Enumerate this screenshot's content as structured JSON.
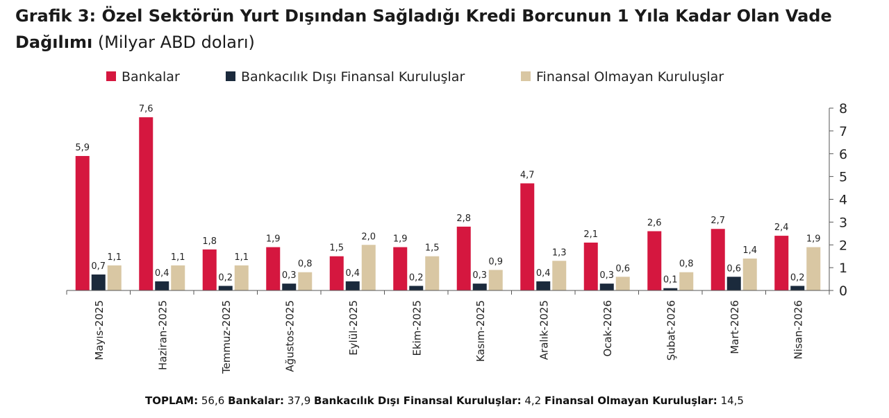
{
  "title": "Grafik 3: Özel Sektörün Yurt Dışından Sağladığı Kredi Borcunun 1 Yıla Kadar Olan Vade Dağılımı",
  "unit": "(Milyar ABD doları)",
  "footer": {
    "total_label": "TOPLAM:",
    "total_value": "56,6",
    "banks_label": "Bankalar:",
    "banks_value": "37,9",
    "nbfi_label": "Bankacılık Dışı Finansal Kuruluşlar:",
    "nbfi_value": "4,2",
    "nfc_label": "Finansal Olmayan Kuruluşlar:",
    "nfc_value": "14,5"
  },
  "chart_data": {
    "type": "bar",
    "categories": [
      "Mayıs-2025",
      "Haziran-2025",
      "Temmuz-2025",
      "Ağustos-2025",
      "Eylül-2025",
      "Ekim-2025",
      "Kasım-2025",
      "Aralık-2025",
      "Ocak-2026",
      "Şubat-2026",
      "Mart-2026",
      "Nisan-2026"
    ],
    "series": [
      {
        "name": "Bankalar",
        "color": "#d5173f",
        "values": [
          5.9,
          7.6,
          1.8,
          1.9,
          1.5,
          1.9,
          2.8,
          4.7,
          2.1,
          2.6,
          2.7,
          2.4
        ]
      },
      {
        "name": "Bankacılık Dışı Finansal Kuruluşlar",
        "color": "#1b2a3c",
        "values": [
          0.7,
          0.4,
          0.2,
          0.3,
          0.4,
          0.2,
          0.3,
          0.4,
          0.3,
          0.1,
          0.6,
          0.2
        ]
      },
      {
        "name": "Finansal Olmayan Kuruluşlar",
        "color": "#d9c7a3",
        "values": [
          1.1,
          1.1,
          1.1,
          0.8,
          2.0,
          1.5,
          0.9,
          1.3,
          0.6,
          0.8,
          1.4,
          1.9
        ]
      }
    ],
    "ylim": [
      0,
      8
    ],
    "yticks": [
      0,
      1,
      2,
      3,
      4,
      5,
      6,
      7,
      8
    ],
    "y_axis_side": "right",
    "legend_position": "top",
    "grid": false,
    "decimal_separator": ","
  }
}
